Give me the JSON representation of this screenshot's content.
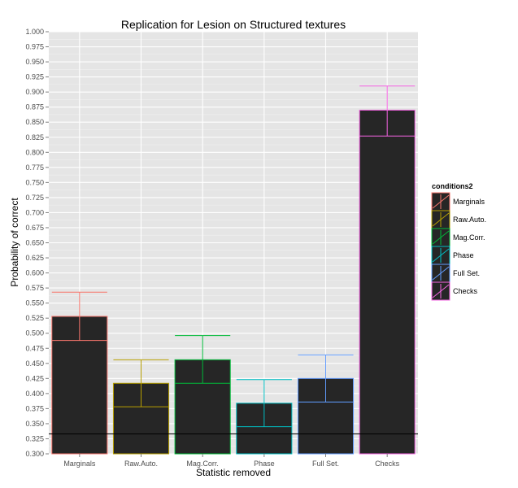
{
  "chart_data": {
    "type": "bar",
    "title": "Replication for Lesion on Structured textures",
    "xlabel": "Statistic removed",
    "ylabel": "Probability of correct",
    "ylim": [
      0.3,
      1.0
    ],
    "ytick_step": 0.025,
    "grid": true,
    "categories": [
      "Marginals",
      "Raw.Auto.",
      "Mag.Corr.",
      "Phase",
      "Full Set.",
      "Checks"
    ],
    "values": [
      0.528,
      0.417,
      0.456,
      0.384,
      0.425,
      0.87
    ],
    "error_lower": [
      0.488,
      0.378,
      0.417,
      0.345,
      0.386,
      0.827
    ],
    "error_upper": [
      0.568,
      0.456,
      0.496,
      0.423,
      0.464,
      0.91
    ],
    "bar_fill": "#262626",
    "reference_line": 0.333,
    "legend": {
      "title": "conditions2",
      "position": "right",
      "entries": [
        "Marginals",
        "Raw.Auto.",
        "Mag.Corr.",
        "Phase",
        "Full Set.",
        "Checks"
      ]
    },
    "colors": [
      "#F8766D",
      "#B79F00",
      "#00BA38",
      "#00BFC4",
      "#619CFF",
      "#F564E3"
    ]
  }
}
